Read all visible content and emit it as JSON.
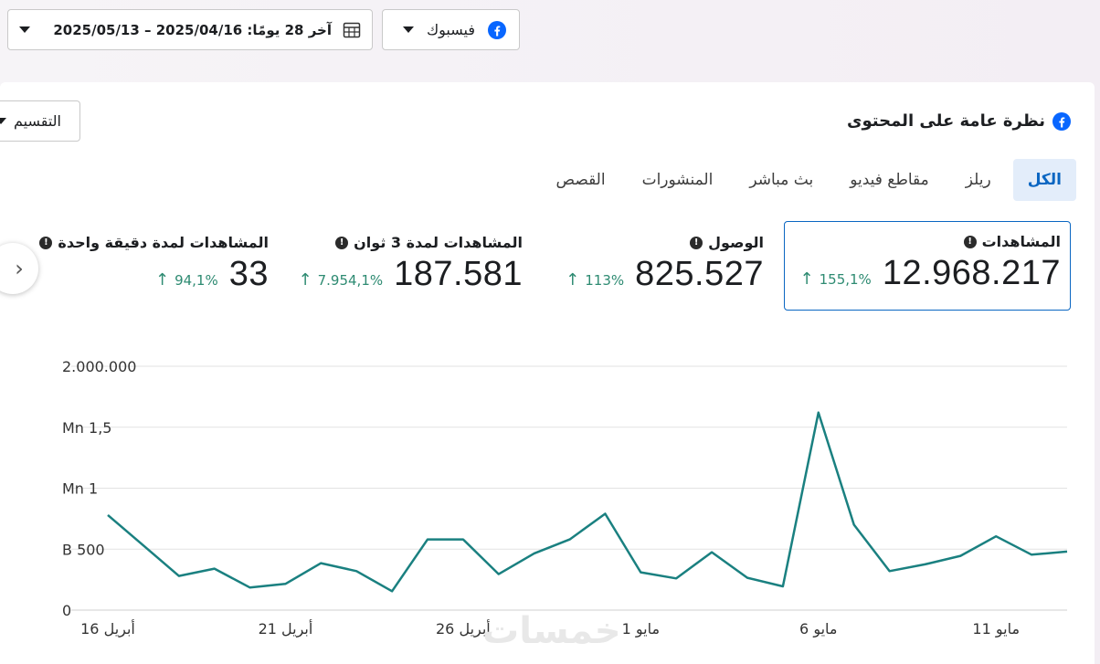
{
  "toolbar": {
    "platform_label": "فيسبوك",
    "date_range_label": "آخر 28 يومًا: 2025/04/16 – 2025/05/13"
  },
  "card": {
    "title": "نظرة عامة على المحتوى",
    "split_label": "التقسيم"
  },
  "tabs": [
    {
      "label": "الكل",
      "active": true
    },
    {
      "label": "ريلز",
      "active": false
    },
    {
      "label": "مقاطع فيديو",
      "active": false
    },
    {
      "label": "بث مباشر",
      "active": false
    },
    {
      "label": "المنشورات",
      "active": false
    },
    {
      "label": "القصص",
      "active": false
    }
  ],
  "metrics": [
    {
      "label": "المشاهدات",
      "value": "12.968.217",
      "delta": "155,1%"
    },
    {
      "label": "الوصول",
      "value": "825.527",
      "delta": "113%"
    },
    {
      "label": "المشاهدات لمدة 3 ثوان",
      "value": "187.581",
      "delta": "7.954,1%"
    },
    {
      "label": "المشاهدات لمدة دقيقة واحدة",
      "value": "33",
      "delta": "94,1%"
    }
  ],
  "watermark": "خمسات",
  "colors": {
    "accent": "#0a66c2",
    "line": "#1a8080",
    "positive": "#2e8b72"
  },
  "chart_data": {
    "type": "line",
    "y_ticks": [
      "0",
      "B 500",
      "Mn 1",
      "Mn 1,5",
      "2.000.000"
    ],
    "y_tick_values": [
      0,
      500000,
      1000000,
      1500000,
      2000000
    ],
    "x_ticks": [
      "16 أبريل",
      "21 أبريل",
      "26 أبريل",
      "1 مايو",
      "6 مايو",
      "11 مايو"
    ],
    "x_tick_positions": [
      0,
      5,
      10,
      15,
      20,
      25
    ],
    "ylim": [
      0,
      2000000
    ],
    "grid": true,
    "series": [
      {
        "values": [
          780000,
          530000,
          280000,
          340000,
          185000,
          215000,
          385000,
          320000,
          155000,
          580000,
          580000,
          295000,
          465000,
          580000,
          790000,
          310000,
          260000,
          475000,
          265000,
          195000,
          1620000,
          700000,
          320000,
          375000,
          445000,
          605000,
          455000,
          480000
        ]
      }
    ]
  }
}
